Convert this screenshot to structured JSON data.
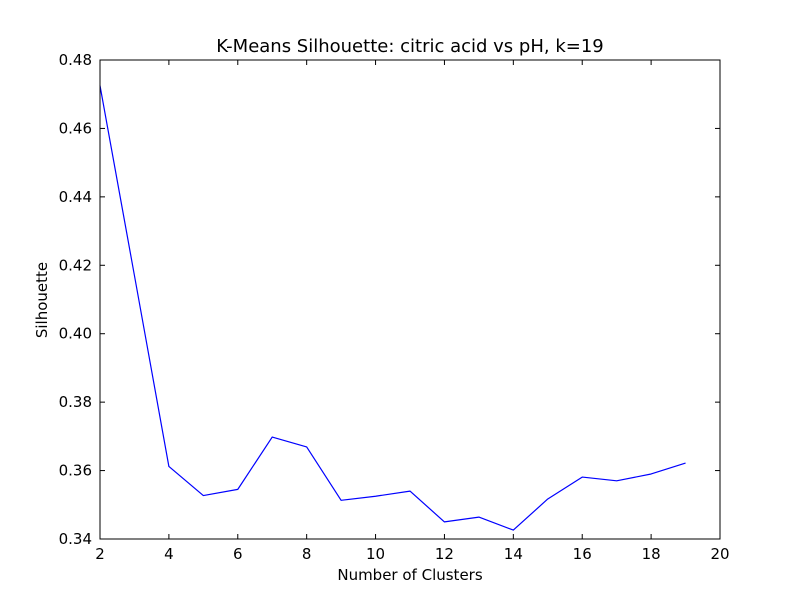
{
  "chart_data": {
    "type": "line",
    "title": "K-Means Silhouette: citric acid vs pH, k=19",
    "xlabel": "Number of Clusters",
    "ylabel": "Silhouette",
    "xlim": [
      2,
      20
    ],
    "ylim": [
      0.34,
      0.48
    ],
    "xticks": [
      "2",
      "4",
      "6",
      "8",
      "10",
      "12",
      "14",
      "16",
      "18",
      "20"
    ],
    "yticks": [
      "0.34",
      "0.36",
      "0.38",
      "0.40",
      "0.42",
      "0.44",
      "0.46",
      "0.48"
    ],
    "grid": false,
    "series": [
      {
        "color": "#0000ff",
        "x": [
          2,
          3,
          4,
          5,
          6,
          7,
          8,
          9,
          10,
          11,
          12,
          13,
          14,
          15,
          16,
          17,
          18,
          19
        ],
        "y": [
          0.4725,
          0.417,
          0.3612,
          0.3527,
          0.3545,
          0.3698,
          0.3669,
          0.3513,
          0.3525,
          0.354,
          0.345,
          0.3464,
          0.3426,
          0.3517,
          0.3581,
          0.357,
          0.359,
          0.3622
        ]
      }
    ]
  }
}
